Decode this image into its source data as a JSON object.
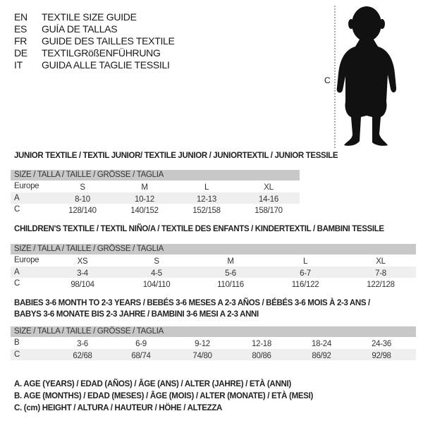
{
  "header": {
    "languages": [
      {
        "code": "EN",
        "text": "TEXTILE SIZE GUIDE"
      },
      {
        "code": "ES",
        "text": "GUÍA DE TALLAS"
      },
      {
        "code": "FR",
        "text": "GUIDE DES TAILLES TEXTILE"
      },
      {
        "code": "DE",
        "text": "TEXTILGRößENFÜHRUNG"
      },
      {
        "code": "IT",
        "text": "GUIDA ALLE TAGLIE TESSILI"
      }
    ]
  },
  "figure": {
    "height_label": "C",
    "icon": "child-silhouette-icon"
  },
  "colors": {
    "header_bar": "#c8c8c8",
    "row_shade": "#efefef"
  },
  "sections": [
    {
      "title_lines": [
        "JUNIOR TEXTILE / TEXTIL JUNIOR/ TEXTILE JUNIOR / JUNIORTEXTIL / JUNIOR TESSILE"
      ],
      "header": "SIZE / TALLA / TAILLE / GRÖSSE / TAGLIA",
      "rows": [
        {
          "label": "Europe",
          "cells": [
            "S",
            "M",
            "L",
            "XL"
          ]
        },
        {
          "label": "A",
          "cells": [
            "8-10",
            "10-12",
            "12-13",
            "14-16"
          ]
        },
        {
          "label": "C",
          "cells": [
            "128/140",
            "140/152",
            "152/158",
            "158/170"
          ]
        }
      ]
    },
    {
      "title_lines": [
        "CHILDREN'S TEXTILE / TEXTIL NIÑO/A / TEXTILE DES ENFANTS / KINDERTEXTIL / BAMBINI TESSILE"
      ],
      "header": "SIZE / TALLA / TAILLE / GRÖSSE / TAGLIA",
      "rows": [
        {
          "label": "Europe",
          "cells": [
            "XS",
            "S",
            "M",
            "L",
            "XL"
          ]
        },
        {
          "label": "A",
          "cells": [
            "3-4",
            "4-5",
            "5-6",
            "6-7",
            "7-8"
          ]
        },
        {
          "label": "C",
          "cells": [
            "98/104",
            "104/110",
            "110/116",
            "116/122",
            "122/128"
          ]
        }
      ]
    },
    {
      "title_lines": [
        "BABIES 3-6 MONTH TO 2-3 YEARS / BEBÉS 3-6 MESES A 2-3 AÑOS / BÉBÉS 3-6 MOIS À 2-3 ANS /",
        "BABYS 3-6 MONATE BIS 2-3 JAHRE / BAMBINI 3-6 MESI A 2-3 ANNI"
      ],
      "header": "SIZE / TALLA / TAILLE / GRÖSSE / TAGLIA",
      "rows": [
        {
          "label": "B",
          "cells": [
            "3-6",
            "6-9",
            "9-12",
            "12-18",
            "18-24",
            "24-36"
          ]
        },
        {
          "label": "C",
          "cells": [
            "62/68",
            "68/74",
            "74/80",
            "80/86",
            "86/92",
            "92/98"
          ]
        }
      ]
    }
  ],
  "legend": [
    "A. AGE (YEARS) / EDAD (AÑOS) / ÂGE (ANS) / ALTER (JAHRE) / ETÀ (ANNI)",
    "B. AGE (MONTHS) / EDAD (MESES) / ÂGE (MOIS) / ALTER (MONATE) / ETÀ (MESI)",
    "C. (cm) HEIGHT / ALTURA / HAUTEUR / HÖHE / ALTEZZA"
  ]
}
